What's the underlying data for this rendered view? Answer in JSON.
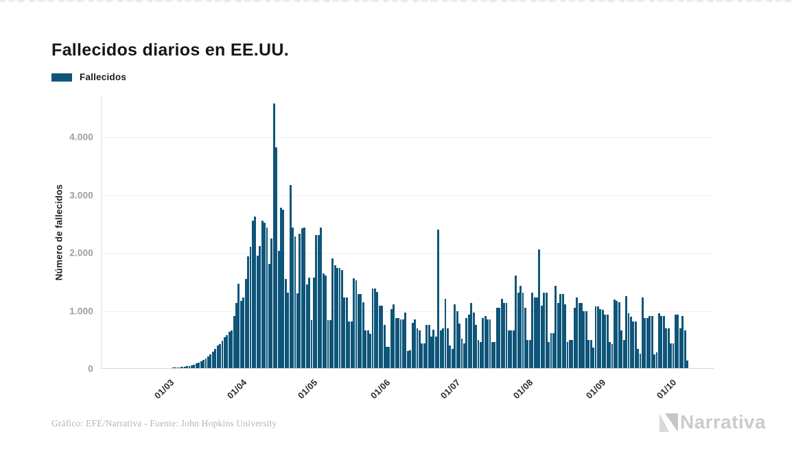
{
  "header": {
    "title": "Fallecidos diarios en EE.UU."
  },
  "legend": {
    "label": "Fallecidos"
  },
  "footer": {
    "credit": "Gráfico: EFE/Narrativa - Fuente: John Hopkins University",
    "brand": "Narrativa"
  },
  "colors": {
    "bar": "#0e5579",
    "grid": "#ededed",
    "axis_line": "#d5d5d5",
    "ytick_text": "#9d9d9d",
    "xtick_text": "#2b2b2b",
    "logo_gray_light": "#d9d9d9",
    "logo_gray": "#c6c6c6"
  },
  "chart_data": {
    "type": "bar",
    "title": "Fallecidos diarios en EE.UU.",
    "xlabel": "",
    "ylabel": "Número de fallecidos",
    "grid": "horizontal",
    "legend_position": "top-left",
    "ylim": [
      0,
      4716
    ],
    "yticks": [
      {
        "value": 0,
        "label": "0"
      },
      {
        "value": 1000,
        "label": "1.000"
      },
      {
        "value": 2000,
        "label": "2.000"
      },
      {
        "value": 3000,
        "label": "3.000"
      },
      {
        "value": 4000,
        "label": "4.000"
      }
    ],
    "xticks": [
      {
        "label": "01/03",
        "index": 22
      },
      {
        "label": "01/04",
        "index": 53
      },
      {
        "label": "01/05",
        "index": 83
      },
      {
        "label": "01/06",
        "index": 114
      },
      {
        "label": "01/07",
        "index": 144
      },
      {
        "label": "01/08",
        "index": 175
      },
      {
        "label": "01/09",
        "index": 206
      },
      {
        "label": "01/10",
        "index": 236
      }
    ],
    "series": [
      {
        "name": "Fallecidos",
        "values": [
          0,
          0,
          0,
          0,
          0,
          0,
          0,
          0,
          0,
          0,
          0,
          1,
          0,
          1,
          2,
          1,
          1,
          2,
          1,
          2,
          2,
          3,
          3,
          4,
          2,
          4,
          5,
          4,
          6,
          5,
          7,
          9,
          12,
          16,
          20,
          26,
          32,
          40,
          52,
          65,
          82,
          100,
          120,
          142,
          168,
          200,
          240,
          280,
          330,
          390,
          420,
          470,
          533,
          569,
          628,
          652,
          900,
          1126,
          1458,
          1161,
          1220,
          1540,
          1940,
          2100,
          2560,
          2620,
          1950,
          2110,
          2560,
          2520,
          2430,
          1800,
          2240,
          4591,
          3830,
          2030,
          2780,
          2750,
          1550,
          1310,
          3170,
          2430,
          2280,
          1300,
          2330,
          2420,
          2430,
          1450,
          1570,
          830,
          1570,
          2310,
          2310,
          2430,
          1635,
          1600,
          830,
          830,
          1895,
          1780,
          1730,
          1730,
          1695,
          1220,
          1220,
          806,
          806,
          1553,
          1517,
          1280,
          1280,
          1138,
          652,
          652,
          593,
          1375,
          1375,
          1316,
          1080,
          1080,
          747,
          370,
          370,
          1020,
          1100,
          865,
          865,
          841,
          841,
          960,
          296,
          308,
          782,
          841,
          687,
          652,
          427,
          427,
          747,
          747,
          545,
          664,
          545,
          2405,
          652,
          687,
          1197,
          687,
          391,
          332,
          1102,
          984,
          770,
          510,
          427,
          865,
          924,
          1126,
          960,
          747,
          486,
          450,
          865,
          901,
          841,
          841,
          450,
          450,
          1043,
          1043,
          1197,
          1126,
          1126,
          652,
          652,
          652,
          1600,
          1304,
          1422,
          1304,
          1043,
          486,
          486,
          1304,
          1221,
          1221,
          2050,
          1080,
          1304,
          1304,
          450,
          605,
          605,
          1422,
          1126,
          1280,
          1280,
          1102,
          450,
          486,
          486,
          1043,
          1220,
          1126,
          1126,
          984,
          984,
          486,
          486,
          356,
          1066,
          1066,
          1020,
          1008,
          924,
          924,
          450,
          415,
          1185,
          1161,
          1140,
          652,
          486,
          1244,
          948,
          889,
          806,
          806,
          332,
          249,
          1220,
          865,
          865,
          901,
          901,
          237,
          272,
          948,
          901,
          901,
          687,
          687,
          427,
          427,
          924,
          924,
          687,
          900,
          650,
          130
        ]
      }
    ]
  }
}
